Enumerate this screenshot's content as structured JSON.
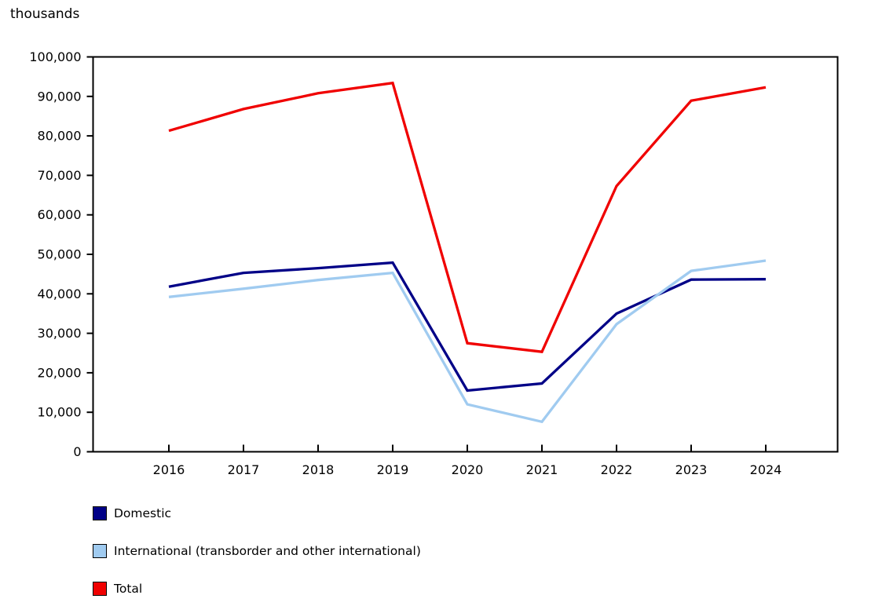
{
  "chart_data": {
    "type": "line",
    "title": "",
    "unit_label": "thousands",
    "xlabel": "",
    "ylabel": "thousands",
    "categories": [
      "2016",
      "2017",
      "2018",
      "2019",
      "2020",
      "2021",
      "2022",
      "2023",
      "2024"
    ],
    "series": [
      {
        "name": "Domestic",
        "color": "#000087",
        "values": [
          41800,
          45300,
          46500,
          47900,
          15500,
          17300,
          35000,
          43600,
          43700
        ]
      },
      {
        "name": "International (transborder and other international)",
        "color": "#A0CBF0",
        "values": [
          39200,
          41300,
          43500,
          45300,
          12000,
          7600,
          32300,
          45800,
          48400
        ]
      },
      {
        "name": "Total",
        "color": "#F00000",
        "values": [
          81300,
          86800,
          90800,
          93400,
          27500,
          25300,
          67300,
          88900,
          92300
        ]
      }
    ],
    "ylim": [
      0,
      100000
    ],
    "ytick_values": [
      0,
      10000,
      20000,
      30000,
      40000,
      50000,
      60000,
      70000,
      80000,
      90000,
      100000
    ],
    "ytick_labels": [
      "0",
      "10,000",
      "20,000",
      "30,000",
      "40,000",
      "50,000",
      "60,000",
      "70,000",
      "80,000",
      "90,000",
      "100,000"
    ],
    "grid": false,
    "legend_position": "bottom-left",
    "axis_color": "#000000",
    "background_color": "#ffffff"
  }
}
